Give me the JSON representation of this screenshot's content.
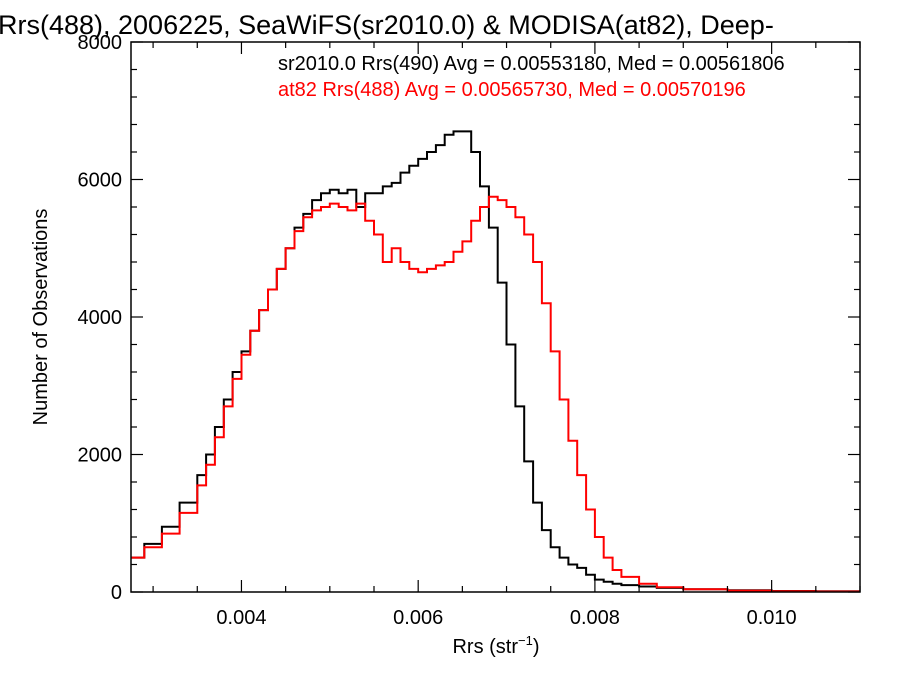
{
  "chart_data": {
    "type": "line",
    "title": "Rrs(488), 2006225, SeaWiFS(sr2010.0) & MODISA(at82), Deep-",
    "xlabel_main": "Rrs (str",
    "xlabel_sup": "−1",
    "xlabel_end": ")",
    "ylabel": "Number of Observations",
    "xlim": [
      0.00275,
      0.011
    ],
    "ylim": [
      0,
      8000
    ],
    "x_ticks": [
      {
        "value": 0.004,
        "label": "0.004"
      },
      {
        "value": 0.006,
        "label": "0.006"
      },
      {
        "value": 0.008,
        "label": "0.008"
      },
      {
        "value": 0.01,
        "label": "0.010"
      }
    ],
    "y_ticks": [
      {
        "value": 0,
        "label": "0"
      },
      {
        "value": 2000,
        "label": "2000"
      },
      {
        "value": 4000,
        "label": "4000"
      },
      {
        "value": 6000,
        "label": "6000"
      },
      {
        "value": 8000,
        "label": "8000"
      }
    ],
    "annotations": [
      {
        "text": "sr2010.0 Rrs(490) Avg = 0.00553180, Med = 0.00561806",
        "color": "#000000"
      },
      {
        "text": "at82 Rrs(488) Avg = 0.00565730, Med = 0.00570196",
        "color": "#ff0000"
      }
    ],
    "series": [
      {
        "color": "#000000",
        "x": [
          0.00275,
          0.0029,
          0.0031,
          0.0033,
          0.0035,
          0.0036,
          0.0037,
          0.0038,
          0.0039,
          0.004,
          0.0041,
          0.0042,
          0.0043,
          0.0044,
          0.0045,
          0.0046,
          0.0047,
          0.0048,
          0.0049,
          0.005,
          0.0051,
          0.0052,
          0.0053,
          0.0054,
          0.0055,
          0.0056,
          0.0057,
          0.0058,
          0.0059,
          0.006,
          0.0061,
          0.0062,
          0.0063,
          0.0064,
          0.0065,
          0.0066,
          0.0067,
          0.0068,
          0.0069,
          0.007,
          0.0071,
          0.0072,
          0.0073,
          0.0074,
          0.0075,
          0.0076,
          0.0077,
          0.0078,
          0.0079,
          0.008,
          0.0081,
          0.0082,
          0.0083,
          0.0085,
          0.0087,
          0.009,
          0.0095,
          0.01,
          0.0105,
          0.011
        ],
        "y": [
          500,
          700,
          950,
          1300,
          1700,
          2000,
          2400,
          2800,
          3200,
          3500,
          3800,
          4100,
          4400,
          4700,
          5000,
          5300,
          5500,
          5700,
          5800,
          5850,
          5800,
          5850,
          5600,
          5800,
          5800,
          5900,
          5950,
          6100,
          6200,
          6300,
          6400,
          6500,
          6650,
          6700,
          6700,
          6400,
          5900,
          5300,
          4500,
          3600,
          2700,
          1900,
          1300,
          900,
          650,
          500,
          400,
          350,
          250,
          180,
          150,
          120,
          100,
          80,
          60,
          40,
          25,
          15,
          10,
          5
        ]
      },
      {
        "color": "#ff0000",
        "x": [
          0.00275,
          0.0029,
          0.0031,
          0.0033,
          0.0035,
          0.0036,
          0.0037,
          0.0038,
          0.0039,
          0.004,
          0.0041,
          0.0042,
          0.0043,
          0.0044,
          0.0045,
          0.0046,
          0.0047,
          0.0048,
          0.0049,
          0.005,
          0.0051,
          0.0052,
          0.0053,
          0.0054,
          0.0055,
          0.0056,
          0.0057,
          0.0058,
          0.0059,
          0.006,
          0.0061,
          0.0062,
          0.0063,
          0.0064,
          0.0065,
          0.0066,
          0.0067,
          0.0068,
          0.0069,
          0.007,
          0.0071,
          0.0072,
          0.0073,
          0.0074,
          0.0075,
          0.0076,
          0.0077,
          0.0078,
          0.0079,
          0.008,
          0.0081,
          0.0082,
          0.0083,
          0.0085,
          0.0087,
          0.009,
          0.0095,
          0.01,
          0.0105,
          0.011
        ],
        "y": [
          500,
          650,
          850,
          1150,
          1550,
          1850,
          2250,
          2700,
          3100,
          3450,
          3800,
          4100,
          4400,
          4700,
          5000,
          5250,
          5450,
          5550,
          5600,
          5650,
          5600,
          5550,
          5650,
          5400,
          5200,
          4800,
          5000,
          4800,
          4700,
          4650,
          4700,
          4750,
          4800,
          4950,
          5100,
          5400,
          5600,
          5750,
          5700,
          5600,
          5450,
          5200,
          4800,
          4200,
          3500,
          2800,
          2200,
          1700,
          1200,
          800,
          500,
          320,
          220,
          120,
          70,
          40,
          20,
          10,
          8,
          5
        ]
      }
    ]
  }
}
